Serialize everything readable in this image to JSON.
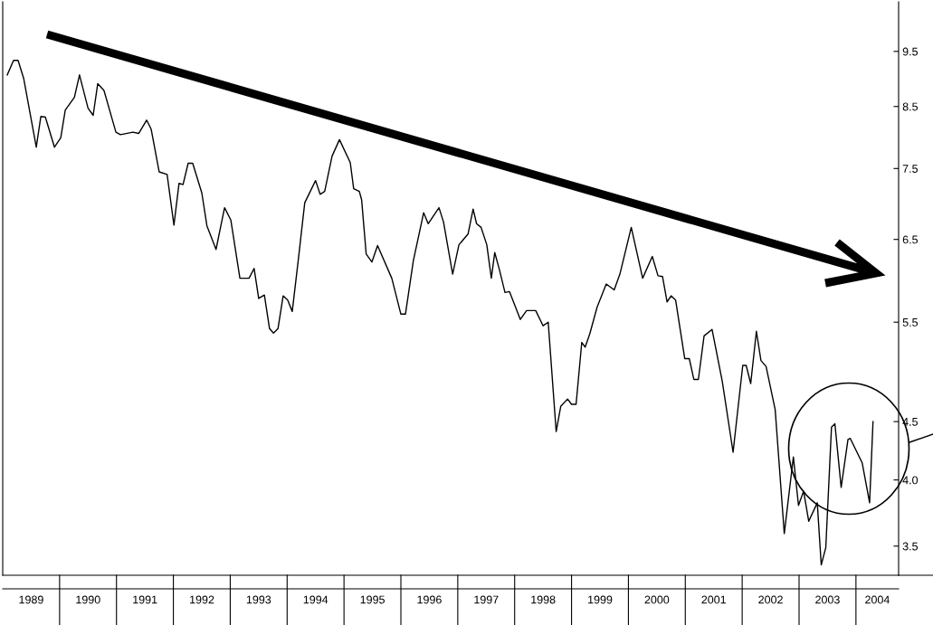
{
  "chart_data": {
    "type": "line",
    "log": "y",
    "color": "#000000",
    "x": [
      1989.08,
      1989.19,
      1989.27,
      1989.37,
      1989.59,
      1989.67,
      1989.75,
      1989.91,
      1990.02,
      1990.1,
      1990.26,
      1990.35,
      1990.5,
      1990.59,
      1990.67,
      1990.78,
      1990.99,
      1991.07,
      1991.29,
      1991.39,
      1991.53,
      1991.61,
      1991.75,
      1991.89,
      1992.01,
      1992.1,
      1992.17,
      1992.26,
      1992.34,
      1992.5,
      1992.59,
      1992.75,
      1992.9,
      1993.01,
      1993.17,
      1993.33,
      1993.42,
      1993.5,
      1993.6,
      1993.69,
      1993.76,
      1993.84,
      1993.93,
      1994.01,
      1994.09,
      1994.2,
      1994.31,
      1994.5,
      1994.58,
      1994.66,
      1994.79,
      1994.92,
      1995.11,
      1995.17,
      1995.27,
      1995.31,
      1995.39,
      1995.49,
      1995.59,
      1995.84,
      1996.0,
      1996.08,
      1996.22,
      1996.4,
      1996.48,
      1996.67,
      1996.75,
      1996.91,
      1997.02,
      1997.18,
      1997.27,
      1997.33,
      1997.41,
      1997.51,
      1997.59,
      1997.65,
      1997.73,
      1997.83,
      1997.91,
      1998.1,
      1998.21,
      1998.37,
      1998.5,
      1998.59,
      1998.73,
      1998.81,
      1998.93,
      1999.0,
      1999.08,
      1999.18,
      1999.24,
      1999.32,
      1999.45,
      1999.61,
      1999.75,
      1999.85,
      2000.05,
      2000.25,
      2000.42,
      2000.52,
      2000.6,
      2000.68,
      2000.75,
      2000.83,
      2000.99,
      2001.07,
      2001.15,
      2001.23,
      2001.33,
      2001.47,
      2001.65,
      2001.84,
      2002.01,
      2002.07,
      2002.15,
      2002.25,
      2002.33,
      2002.42,
      2002.58,
      2002.74,
      2002.9,
      2002.99,
      2003.08,
      2003.17,
      2003.32,
      2003.39,
      2003.47,
      2003.57,
      2003.63,
      2003.74,
      2003.86,
      2003.9,
      2004.11,
      2004.24,
      2004.3
    ],
    "values": [
      9.06,
      9.33,
      9.33,
      8.99,
      7.83,
      8.33,
      8.32,
      7.83,
      7.98,
      8.44,
      8.66,
      9.06,
      8.47,
      8.35,
      8.9,
      8.78,
      8.07,
      8.03,
      8.07,
      8.05,
      8.27,
      8.12,
      7.45,
      7.41,
      6.69,
      7.28,
      7.26,
      7.58,
      7.58,
      7.14,
      6.68,
      6.37,
      6.93,
      6.76,
      6.01,
      6.01,
      6.13,
      5.77,
      5.81,
      5.43,
      5.38,
      5.43,
      5.8,
      5.75,
      5.62,
      6.26,
      7.0,
      7.32,
      7.12,
      7.16,
      7.69,
      7.95,
      7.59,
      7.2,
      7.16,
      7.04,
      6.31,
      6.21,
      6.42,
      6.01,
      5.59,
      5.59,
      6.23,
      6.86,
      6.71,
      6.93,
      6.73,
      6.06,
      6.43,
      6.57,
      6.91,
      6.71,
      6.66,
      6.43,
      6.01,
      6.33,
      6.12,
      5.84,
      5.85,
      5.53,
      5.63,
      5.63,
      5.46,
      5.5,
      4.41,
      4.64,
      4.71,
      4.66,
      4.66,
      5.28,
      5.23,
      5.37,
      5.67,
      5.94,
      5.87,
      6.06,
      6.66,
      6.01,
      6.28,
      6.04,
      6.03,
      5.73,
      5.8,
      5.75,
      5.11,
      5.11,
      4.9,
      4.9,
      5.35,
      5.42,
      4.88,
      4.23,
      5.04,
      5.04,
      4.86,
      5.4,
      5.09,
      5.03,
      4.61,
      3.59,
      4.19,
      3.8,
      3.91,
      3.68,
      3.82,
      3.37,
      3.49,
      4.45,
      4.48,
      3.94,
      4.34,
      4.35,
      4.14,
      3.82,
      4.5
    ],
    "xlim": [
      1989,
      2004.75
    ],
    "xticks": [
      {
        "value": 1989.5,
        "label": "1989"
      },
      {
        "value": 1990.5,
        "label": "1990"
      },
      {
        "value": 1991.5,
        "label": "1991"
      },
      {
        "value": 1992.5,
        "label": "1992"
      },
      {
        "value": 1993.5,
        "label": "1993"
      },
      {
        "value": 1994.5,
        "label": "1994"
      },
      {
        "value": 1995.5,
        "label": "1995"
      },
      {
        "value": 1996.5,
        "label": "1996"
      },
      {
        "value": 1997.5,
        "label": "1997"
      },
      {
        "value": 1998.5,
        "label": "1998"
      },
      {
        "value": 1999.5,
        "label": "1999"
      },
      {
        "value": 2000.5,
        "label": "2000"
      },
      {
        "value": 2001.5,
        "label": "2001"
      },
      {
        "value": 2002.5,
        "label": "2002"
      },
      {
        "value": 2003.5,
        "label": "2003"
      },
      {
        "value": 2004.375,
        "label": "2004"
      }
    ],
    "ylim": [
      3.3,
      10.5
    ],
    "yticks": [
      3.5,
      {
        "value": 4,
        "label": "4.0"
      },
      4.5,
      5.5,
      6.5,
      7.5,
      8.5,
      9.5
    ]
  }
}
